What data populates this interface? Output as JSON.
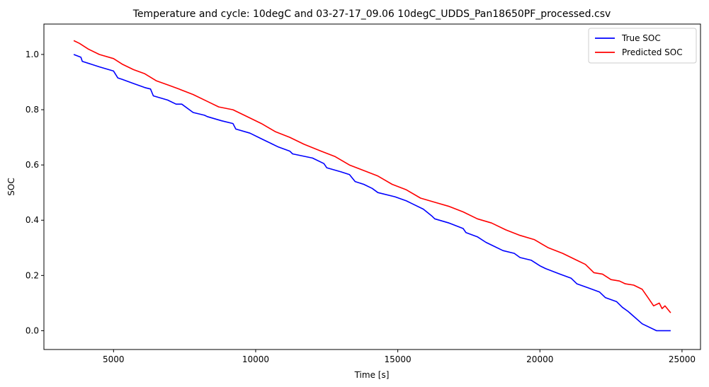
{
  "chart_data": {
    "type": "line",
    "title": "Temperature and cycle: 10degC and 03-27-17_09.06 10degC_UDDS_Pan18650PF_processed.csv",
    "xlabel": "Time [s]",
    "ylabel": "SOC",
    "xlim": [
      2550,
      25650
    ],
    "ylim": [
      -0.068,
      1.11
    ],
    "xticks": [
      5000,
      10000,
      15000,
      20000,
      25000
    ],
    "xtick_labels": [
      "5000",
      "10000",
      "15000",
      "20000",
      "25000"
    ],
    "yticks": [
      0.0,
      0.2,
      0.4,
      0.6,
      0.8,
      1.0
    ],
    "ytick_labels": [
      "0.0",
      "0.2",
      "0.4",
      "0.6",
      "0.8",
      "1.0"
    ],
    "grid": false,
    "legend_position": "top-right",
    "series": [
      {
        "name": "True SOC",
        "color": "#0000ff",
        "x": [
          3600,
          3850,
          3900,
          4500,
          5000,
          5150,
          5300,
          5700,
          6100,
          6300,
          6400,
          6900,
          7200,
          7400,
          7800,
          8200,
          8300,
          8800,
          9200,
          9300,
          9800,
          10200,
          10400,
          10800,
          11200,
          11300,
          12000,
          12400,
          12500,
          13000,
          13300,
          13500,
          13800,
          14100,
          14300,
          14900,
          15300,
          15500,
          15900,
          16200,
          16300,
          16800,
          17300,
          17400,
          17800,
          18100,
          18300,
          18700,
          19100,
          19300,
          19700,
          20000,
          20200,
          20700,
          21100,
          21300,
          21700,
          22100,
          22300,
          22700,
          22900,
          23100,
          23600,
          24100,
          24600
        ],
        "y": [
          1.0,
          0.99,
          0.975,
          0.955,
          0.94,
          0.915,
          0.91,
          0.895,
          0.88,
          0.875,
          0.85,
          0.835,
          0.82,
          0.82,
          0.79,
          0.78,
          0.775,
          0.76,
          0.75,
          0.73,
          0.715,
          0.695,
          0.685,
          0.665,
          0.65,
          0.64,
          0.625,
          0.605,
          0.59,
          0.575,
          0.565,
          0.54,
          0.53,
          0.515,
          0.5,
          0.485,
          0.47,
          0.46,
          0.44,
          0.415,
          0.405,
          0.39,
          0.37,
          0.355,
          0.34,
          0.32,
          0.31,
          0.29,
          0.28,
          0.265,
          0.255,
          0.235,
          0.225,
          0.205,
          0.19,
          0.17,
          0.155,
          0.14,
          0.12,
          0.105,
          0.085,
          0.07,
          0.025,
          0.0,
          0.0
        ]
      },
      {
        "name": "Predicted SOC",
        "color": "#ff0000",
        "x": [
          3600,
          3800,
          4100,
          4500,
          5000,
          5300,
          5700,
          6100,
          6500,
          6900,
          7300,
          7800,
          8300,
          8700,
          9200,
          9600,
          10200,
          10700,
          11200,
          11700,
          12300,
          12800,
          13300,
          13800,
          14300,
          14800,
          15300,
          15800,
          16300,
          16800,
          17300,
          17800,
          18300,
          18800,
          19300,
          19800,
          20300,
          20800,
          21300,
          21600,
          21900,
          22200,
          22500,
          22800,
          23000,
          23300,
          23600,
          23800,
          24000,
          24200,
          24300,
          24400,
          24600
        ],
        "y": [
          1.05,
          1.04,
          1.02,
          1.0,
          0.985,
          0.965,
          0.945,
          0.93,
          0.905,
          0.89,
          0.875,
          0.855,
          0.83,
          0.81,
          0.8,
          0.78,
          0.75,
          0.72,
          0.7,
          0.675,
          0.65,
          0.63,
          0.6,
          0.58,
          0.56,
          0.53,
          0.51,
          0.48,
          0.465,
          0.45,
          0.43,
          0.405,
          0.39,
          0.365,
          0.345,
          0.33,
          0.3,
          0.28,
          0.255,
          0.24,
          0.21,
          0.205,
          0.185,
          0.18,
          0.17,
          0.165,
          0.15,
          0.12,
          0.09,
          0.1,
          0.08,
          0.09,
          0.065
        ]
      }
    ]
  }
}
